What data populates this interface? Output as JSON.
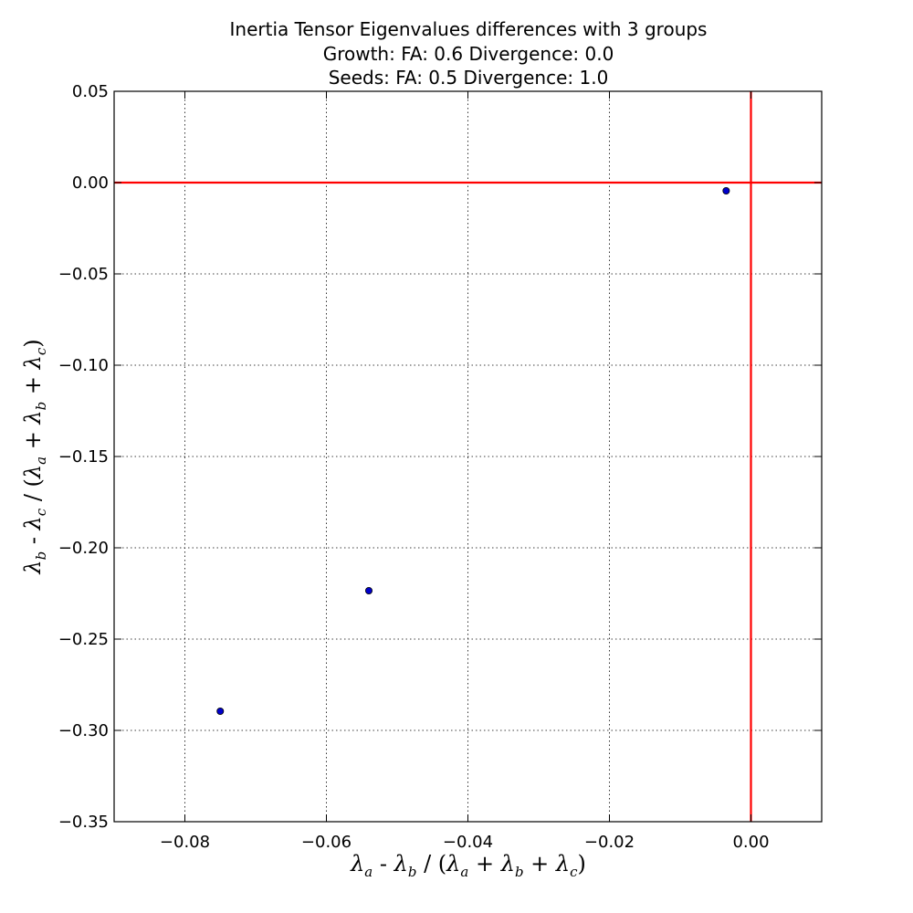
{
  "chart_data": {
    "type": "scatter",
    "title": [
      "Inertia Tensor Eigenvalues differences with 3 groups",
      "Growth: FA: 0.6 Divergence: 0.0",
      "Seeds: FA: 0.5 Divergence: 1.0"
    ],
    "xlabel": "λa - λb / (λa + λb + λc)",
    "ylabel": "λb - λc / (λa + λb + λc)",
    "xlim": [
      -0.09,
      0.01
    ],
    "ylim": [
      -0.35,
      0.05
    ],
    "xticks": [
      "−0.08",
      "−0.06",
      "−0.04",
      "−0.02",
      "0.00"
    ],
    "xtick_values": [
      -0.08,
      -0.06,
      -0.04,
      -0.02,
      0.0
    ],
    "yticks": [
      "0.05",
      "0.00",
      "−0.05",
      "−0.10",
      "−0.15",
      "−0.20",
      "−0.25",
      "−0.30",
      "−0.35"
    ],
    "ytick_values": [
      0.05,
      0.0,
      -0.05,
      -0.1,
      -0.15,
      -0.2,
      -0.25,
      -0.3,
      -0.35
    ],
    "grid": true,
    "reference_lines": {
      "x": 0.0,
      "y": 0.0,
      "color": "#ff0000"
    },
    "series": [
      {
        "marker_color": "#0000cc",
        "points": [
          {
            "x": -0.0035,
            "y": -0.0045
          },
          {
            "x": -0.054,
            "y": -0.2235
          },
          {
            "x": -0.075,
            "y": -0.2895
          }
        ]
      }
    ]
  }
}
